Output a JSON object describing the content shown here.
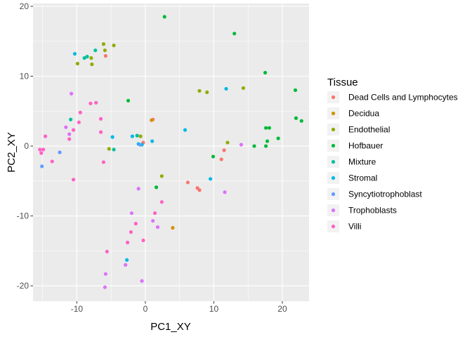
{
  "chart_data": {
    "type": "scatter",
    "title": "",
    "xlabel": "PC1_XY",
    "ylabel": "PC2_XY",
    "xlim": [
      -16.4,
      23.9
    ],
    "ylim": [
      -22.2,
      20.4
    ],
    "xticks": [
      -10,
      0,
      10,
      20
    ],
    "yticks": [
      -20,
      -10,
      0,
      10,
      20
    ],
    "grid": true,
    "panel_background": "#EBEBEB",
    "legend": {
      "title": "Tissue",
      "position": "right"
    },
    "series": [
      {
        "name": "Dead Cells and Lymphocytes",
        "color": "#F8766D",
        "points": [
          [
            -5.8,
            12.9
          ],
          [
            1.1,
            3.8
          ],
          [
            -0.3,
            0.5
          ],
          [
            11.5,
            -0.6
          ],
          [
            11.1,
            -1.9
          ],
          [
            6.2,
            -5.2
          ],
          [
            7.6,
            -6.0
          ],
          [
            7.9,
            -6.3
          ]
        ]
      },
      {
        "name": "Decidua",
        "color": "#D39200",
        "points": [
          [
            0.9,
            3.7
          ],
          [
            4.0,
            -11.7
          ]
        ]
      },
      {
        "name": "Endothelial",
        "color": "#93AA00",
        "points": [
          [
            -6.1,
            14.6
          ],
          [
            -4.6,
            14.4
          ],
          [
            -5.9,
            13.7
          ],
          [
            -7.9,
            12.6
          ],
          [
            -9.9,
            11.8
          ],
          [
            -7.8,
            11.7
          ],
          [
            7.9,
            7.9
          ],
          [
            9.0,
            7.7
          ],
          [
            14.3,
            8.3
          ],
          [
            -0.7,
            1.4
          ],
          [
            -5.3,
            -0.4
          ],
          [
            12.0,
            0.5
          ],
          [
            2.4,
            -4.3
          ]
        ]
      },
      {
        "name": "Hofbauer",
        "color": "#00BA38",
        "points": [
          [
            2.8,
            18.5
          ],
          [
            13.0,
            16.1
          ],
          [
            17.5,
            10.5
          ],
          [
            21.9,
            8.0
          ],
          [
            -2.5,
            6.5
          ],
          [
            17.6,
            2.6
          ],
          [
            18.1,
            2.6
          ],
          [
            22.0,
            4.0
          ],
          [
            22.8,
            3.6
          ],
          [
            19.4,
            1.1
          ],
          [
            17.8,
            0.7
          ],
          [
            15.9,
            0.0
          ],
          [
            17.6,
            0.0
          ],
          [
            9.9,
            -1.5
          ],
          [
            1.6,
            -5.9
          ]
        ]
      },
      {
        "name": "Mixture",
        "color": "#00C19F",
        "points": [
          [
            -7.3,
            13.7
          ],
          [
            -8.5,
            12.8
          ],
          [
            -8.9,
            12.6
          ],
          [
            -10.9,
            3.8
          ],
          [
            -4.6,
            -0.5
          ],
          [
            -1.2,
            1.5
          ]
        ]
      },
      {
        "name": "Stromal",
        "color": "#00B9E3",
        "points": [
          [
            -10.3,
            13.2
          ],
          [
            -4.8,
            1.3
          ],
          [
            -1.9,
            1.4
          ],
          [
            1.0,
            0.7
          ],
          [
            5.8,
            2.3
          ],
          [
            11.8,
            8.2
          ],
          [
            9.5,
            -4.7
          ],
          [
            -2.7,
            -16.3
          ],
          [
            -1.0,
            0.3
          ],
          [
            -0.5,
            0.2
          ]
        ]
      },
      {
        "name": "Syncytiotrophoblast",
        "color": "#619CFF",
        "points": [
          [
            -12.5,
            -0.9
          ],
          [
            -15.1,
            -2.9
          ],
          [
            -0.8,
            0.2
          ]
        ]
      },
      {
        "name": "Trophoblasts",
        "color": "#DB72FB",
        "points": [
          [
            -10.8,
            7.5
          ],
          [
            -11.6,
            2.7
          ],
          [
            -11.1,
            1.7
          ],
          [
            -1.0,
            -6.1
          ],
          [
            -2.0,
            -9.6
          ],
          [
            1.1,
            -10.7
          ],
          [
            1.8,
            -11.6
          ],
          [
            11.6,
            -6.6
          ],
          [
            14.0,
            0.2
          ],
          [
            -0.5,
            -19.3
          ],
          [
            -2.9,
            -17.0
          ],
          [
            -5.8,
            -18.3
          ],
          [
            -5.9,
            -20.2
          ]
        ]
      },
      {
        "name": "Villi",
        "color": "#FF61C3",
        "points": [
          [
            -9.5,
            4.8
          ],
          [
            -7.2,
            6.2
          ],
          [
            -8.0,
            6.1
          ],
          [
            -10.5,
            2.3
          ],
          [
            -9.7,
            3.4
          ],
          [
            -6.5,
            3.9
          ],
          [
            -6.5,
            2.0
          ],
          [
            -6.1,
            -2.3
          ],
          [
            -14.6,
            1.4
          ],
          [
            -15.2,
            -1.0
          ],
          [
            -14.9,
            -0.5
          ],
          [
            -13.6,
            -2.2
          ],
          [
            -10.5,
            -4.8
          ],
          [
            -11.1,
            1.0
          ],
          [
            -15.4,
            -0.5
          ],
          [
            2.4,
            -8.0
          ],
          [
            1.4,
            -9.6
          ],
          [
            -0.3,
            -13.5
          ],
          [
            -1.4,
            -11.1
          ],
          [
            -2.1,
            -12.3
          ],
          [
            -2.6,
            -13.8
          ],
          [
            -5.6,
            -15.1
          ]
        ]
      }
    ]
  }
}
